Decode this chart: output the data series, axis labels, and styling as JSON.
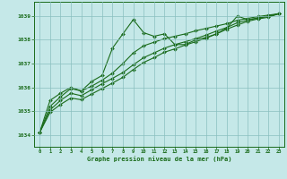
{
  "background_color": "#c5e8e8",
  "grid_color": "#8abfbf",
  "line_color": "#1a6b1a",
  "axis_label_color": "#1a6b1a",
  "tick_label_color": "#1a6b1a",
  "xlabel": "Graphe pression niveau de la mer (hPa)",
  "ylim": [
    1033.5,
    1039.6
  ],
  "xlim": [
    -0.5,
    23.5
  ],
  "yticks": [
    1034,
    1035,
    1036,
    1037,
    1038,
    1039
  ],
  "xticks": [
    0,
    1,
    2,
    3,
    4,
    5,
    6,
    7,
    8,
    9,
    10,
    11,
    12,
    13,
    14,
    15,
    16,
    17,
    18,
    19,
    20,
    21,
    22,
    23
  ],
  "series": [
    {
      "x": [
        0,
        1,
        2,
        3,
        4,
        5,
        6,
        7,
        8,
        9,
        10,
        11,
        12,
        13,
        14,
        15,
        16,
        17,
        18,
        19,
        20,
        21,
        22,
        23
      ],
      "y": [
        1034.1,
        1035.45,
        1035.75,
        1036.0,
        1035.85,
        1036.25,
        1036.5,
        1037.65,
        1038.25,
        1038.85,
        1038.3,
        1038.15,
        1038.25,
        1037.8,
        1037.8,
        1038.0,
        1038.1,
        1038.25,
        1038.5,
        1039.0,
        1038.85,
        1038.9,
        1039.0,
        1039.1
      ]
    },
    {
      "x": [
        0,
        1,
        2,
        3,
        4,
        5,
        6,
        7,
        8,
        9,
        10,
        11,
        12,
        13,
        14,
        15,
        16,
        17,
        18,
        19,
        20,
        21,
        22,
        23
      ],
      "y": [
        1034.1,
        1035.2,
        1035.6,
        1035.95,
        1035.85,
        1036.05,
        1036.3,
        1036.6,
        1037.0,
        1037.45,
        1037.75,
        1037.9,
        1038.05,
        1038.15,
        1038.25,
        1038.38,
        1038.48,
        1038.58,
        1038.68,
        1038.82,
        1038.9,
        1038.98,
        1039.04,
        1039.1
      ]
    },
    {
      "x": [
        0,
        1,
        2,
        3,
        4,
        5,
        6,
        7,
        8,
        9,
        10,
        11,
        12,
        13,
        14,
        15,
        16,
        17,
        18,
        19,
        20,
        21,
        22,
        23
      ],
      "y": [
        1034.1,
        1035.05,
        1035.45,
        1035.75,
        1035.65,
        1035.9,
        1036.15,
        1036.38,
        1036.62,
        1036.95,
        1037.25,
        1037.45,
        1037.65,
        1037.8,
        1037.92,
        1038.05,
        1038.2,
        1038.37,
        1038.52,
        1038.72,
        1038.83,
        1038.93,
        1038.99,
        1039.1
      ]
    },
    {
      "x": [
        0,
        1,
        2,
        3,
        4,
        5,
        6,
        7,
        8,
        9,
        10,
        11,
        12,
        13,
        14,
        15,
        16,
        17,
        18,
        19,
        20,
        21,
        22,
        23
      ],
      "y": [
        1034.1,
        1034.95,
        1035.28,
        1035.55,
        1035.48,
        1035.72,
        1035.95,
        1036.18,
        1036.42,
        1036.75,
        1037.05,
        1037.25,
        1037.48,
        1037.62,
        1037.78,
        1037.92,
        1038.07,
        1038.25,
        1038.45,
        1038.62,
        1038.78,
        1038.88,
        1038.95,
        1039.1
      ]
    }
  ]
}
